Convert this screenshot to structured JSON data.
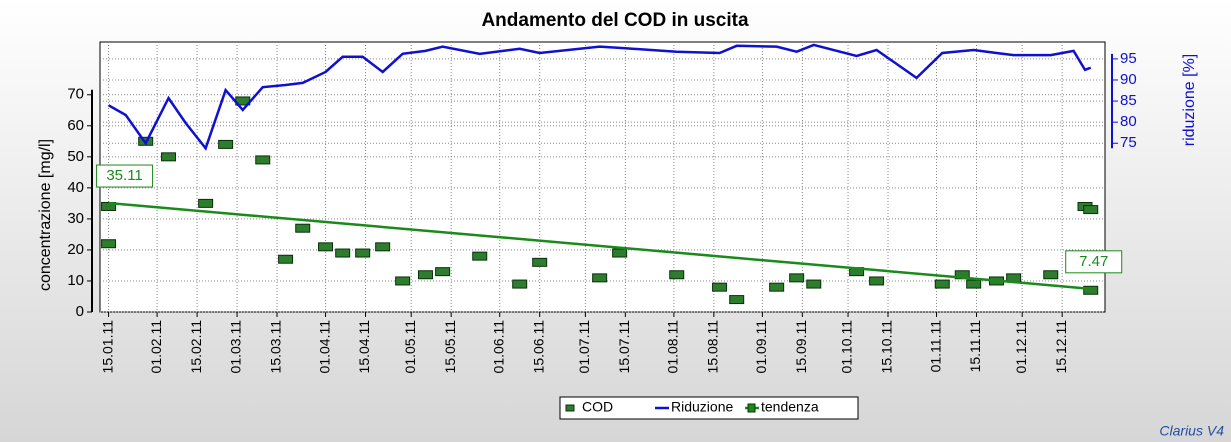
{
  "chart_data": {
    "type": "scatter",
    "title": "Andamento del COD in uscita",
    "ylabel": "concentrazione [mg/l]",
    "y2label": "riduzione [%]",
    "footer": "Clarius V4",
    "xlim": [
      12,
      364
    ],
    "xticks": [
      {
        "value": 15,
        "label": "15.01.11"
      },
      {
        "value": 32,
        "label": "01.02.11"
      },
      {
        "value": 46,
        "label": "15.02.11"
      },
      {
        "value": 60,
        "label": "01.03.11"
      },
      {
        "value": 74,
        "label": "15.03.11"
      },
      {
        "value": 91,
        "label": "01.04.11"
      },
      {
        "value": 105,
        "label": "15.04.11"
      },
      {
        "value": 121,
        "label": "01.05.11"
      },
      {
        "value": 135,
        "label": "15.05.11"
      },
      {
        "value": 152,
        "label": "01.06.11"
      },
      {
        "value": 166,
        "label": "15.06.11"
      },
      {
        "value": 182,
        "label": "01.07.11"
      },
      {
        "value": 196,
        "label": "15.07.11"
      },
      {
        "value": 213,
        "label": "01.08.11"
      },
      {
        "value": 227,
        "label": "15.08.11"
      },
      {
        "value": 244,
        "label": "01.09.11"
      },
      {
        "value": 258,
        "label": "15.09.11"
      },
      {
        "value": 274,
        "label": "01.10.11"
      },
      {
        "value": 288,
        "label": "15.10.11"
      },
      {
        "value": 305,
        "label": "01.11.11"
      },
      {
        "value": 319,
        "label": "15.11.11"
      },
      {
        "value": 335,
        "label": "01.12.11"
      },
      {
        "value": 349,
        "label": "15.12.11"
      }
    ],
    "ylim": [
      0,
      87
    ],
    "yticks": [
      0,
      10,
      20,
      30,
      40,
      50,
      60,
      70
    ],
    "y2lim": [
      35,
      99
    ],
    "y2ticks": [
      75,
      80,
      85,
      90,
      95
    ],
    "grid": true,
    "legend": "bottom",
    "series": [
      {
        "name": "COD",
        "type": "scatter",
        "color": "#2e7d2e",
        "x": [
          15,
          15,
          28,
          36,
          49,
          56,
          62,
          69,
          77,
          83,
          91,
          97,
          104,
          111,
          118,
          126,
          132,
          145,
          159,
          166,
          187,
          194,
          214,
          229,
          235,
          249,
          256,
          262,
          277,
          284,
          307,
          314,
          318,
          326,
          332,
          345,
          357,
          359,
          359
        ],
        "values": [
          22,
          34,
          55,
          50,
          35,
          54,
          68,
          49,
          17,
          27,
          21,
          19,
          19,
          21,
          10,
          12,
          13,
          18,
          9,
          16,
          11,
          19,
          12,
          8,
          4,
          8,
          11,
          9,
          13,
          10,
          9,
          12,
          9,
          10,
          11,
          12,
          34,
          33,
          7
        ]
      },
      {
        "name": "Riduzione",
        "type": "line",
        "axis": "y2",
        "color": "#1010d0",
        "x": [
          15,
          21,
          28,
          36,
          42,
          49,
          56,
          62,
          69,
          77,
          83,
          91,
          97,
          104,
          111,
          118,
          126,
          132,
          145,
          159,
          166,
          187,
          194,
          214,
          229,
          235,
          249,
          256,
          262,
          277,
          284,
          298,
          307,
          318,
          326,
          332,
          345,
          353,
          357,
          359
        ],
        "values": [
          84,
          81.7,
          75,
          85.7,
          79.8,
          73.8,
          87.6,
          82.9,
          88.3,
          88.8,
          89.3,
          91.9,
          95.5,
          95.5,
          91.9,
          96.2,
          96.9,
          97.9,
          96.2,
          97.4,
          96.4,
          97.9,
          97.6,
          96.7,
          96.4,
          98.1,
          97.9,
          96.7,
          98.3,
          95.7,
          97.1,
          90.5,
          96.4,
          97.1,
          96.4,
          95.9,
          95.9,
          96.9,
          92.4,
          92.9
        ]
      },
      {
        "name": "tendenza",
        "type": "trend",
        "color": "#1a8a1a",
        "x": [
          15,
          359
        ],
        "values": [
          35.11,
          7.47
        ]
      }
    ]
  }
}
